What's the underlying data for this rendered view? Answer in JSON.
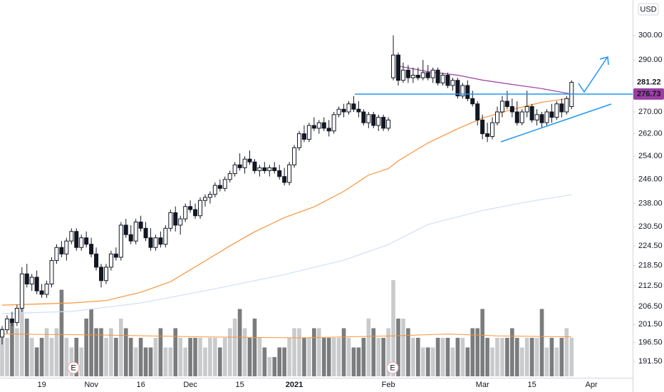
{
  "chart_data": {
    "type": "candlestick",
    "currency": "USD",
    "log_scale": true,
    "ylim": [
      187.2,
      315
    ],
    "yticks": [
      {
        "value": 191.5,
        "label": "191.50"
      },
      {
        "value": 196.5,
        "label": "196.50"
      },
      {
        "value": 201.5,
        "label": "201.50"
      },
      {
        "value": 206.5,
        "label": "206.50"
      },
      {
        "value": 212.5,
        "label": "212.50"
      },
      {
        "value": 218.5,
        "label": "218.50"
      },
      {
        "value": 224.5,
        "label": "224.50"
      },
      {
        "value": 230.5,
        "label": "230.50"
      },
      {
        "value": 238,
        "label": "238.00"
      },
      {
        "value": 246,
        "label": "246.00"
      },
      {
        "value": 254,
        "label": "254.00"
      },
      {
        "value": 262,
        "label": "262.00"
      },
      {
        "value": 270,
        "label": "270.00"
      },
      {
        "value": 290,
        "label": "290.00"
      },
      {
        "value": 300,
        "label": "300.00"
      }
    ],
    "categories": [
      null,
      null,
      null,
      null,
      null,
      null,
      null,
      null,
      "19",
      null,
      null,
      null,
      null,
      null,
      null,
      null,
      null,
      null,
      "Nov",
      null,
      null,
      null,
      null,
      null,
      null,
      null,
      null,
      null,
      "16",
      null,
      null,
      null,
      null,
      null,
      null,
      null,
      null,
      null,
      "Dec",
      null,
      null,
      null,
      null,
      null,
      null,
      null,
      null,
      null,
      "15",
      null,
      null,
      null,
      null,
      null,
      null,
      null,
      null,
      null,
      null,
      "2021",
      null,
      null,
      null,
      null,
      null,
      null,
      null,
      null,
      null,
      null,
      null,
      null,
      null,
      null,
      null,
      null,
      null,
      null,
      "Feb",
      null,
      null,
      null,
      null,
      null,
      null,
      null,
      null,
      null,
      null,
      null,
      null,
      null,
      null,
      null,
      null,
      null,
      null,
      "Mar",
      null,
      null,
      null,
      null,
      null,
      null,
      null,
      null,
      null,
      "15",
      null,
      null,
      null,
      null,
      null,
      null,
      null,
      null,
      null,
      null,
      null,
      "Apr",
      null,
      null,
      null,
      null,
      null,
      null,
      null,
      null
    ],
    "ohlc": [
      [
        198,
        201,
        196,
        200
      ],
      [
        200,
        204,
        199,
        203
      ],
      [
        203,
        205,
        201,
        202
      ],
      [
        202,
        207,
        201,
        206
      ],
      [
        206,
        218,
        205,
        216
      ],
      [
        216,
        219,
        212,
        213
      ],
      [
        213,
        216,
        211,
        215
      ],
      [
        215,
        217,
        210,
        211
      ],
      [
        211,
        213,
        209,
        210
      ],
      [
        210,
        214,
        209,
        213
      ],
      [
        213,
        221,
        212,
        220
      ],
      [
        220,
        225,
        219,
        224
      ],
      [
        224,
        226,
        221,
        222
      ],
      [
        222,
        227,
        220,
        226
      ],
      [
        226,
        230,
        225,
        229
      ],
      [
        229,
        230,
        223,
        224
      ],
      [
        224,
        228,
        223,
        227
      ],
      [
        227,
        229,
        224,
        225
      ],
      [
        225,
        227,
        221,
        222
      ],
      [
        222,
        224,
        217,
        218
      ],
      [
        218,
        219,
        212,
        214
      ],
      [
        214,
        219,
        213,
        218
      ],
      [
        218,
        223,
        217,
        222
      ],
      [
        222,
        224,
        220,
        221
      ],
      [
        221,
        232,
        220,
        231
      ],
      [
        231,
        233,
        227,
        228
      ],
      [
        228,
        231,
        225,
        226
      ],
      [
        226,
        233,
        225,
        232
      ],
      [
        232,
        234,
        229,
        230
      ],
      [
        230,
        232,
        226,
        227
      ],
      [
        227,
        230,
        223,
        224
      ],
      [
        224,
        228,
        223,
        227
      ],
      [
        227,
        229,
        224,
        225
      ],
      [
        225,
        231,
        224,
        230
      ],
      [
        230,
        236,
        229,
        235
      ],
      [
        235,
        237,
        229,
        231
      ],
      [
        231,
        234,
        228,
        233
      ],
      [
        233,
        238,
        232,
        237
      ],
      [
        237,
        239,
        235,
        236
      ],
      [
        236,
        238,
        233,
        234
      ],
      [
        234,
        240,
        233,
        239
      ],
      [
        239,
        241,
        237,
        240
      ],
      [
        240,
        242,
        238,
        241
      ],
      [
        241,
        245,
        240,
        244
      ],
      [
        244,
        246,
        242,
        243
      ],
      [
        243,
        247,
        242,
        246
      ],
      [
        246,
        249,
        245,
        248
      ],
      [
        248,
        252,
        247,
        251
      ],
      [
        251,
        255,
        249,
        250
      ],
      [
        250,
        254,
        248,
        253
      ],
      [
        253,
        256,
        251,
        252
      ],
      [
        252,
        253,
        248,
        249
      ],
      [
        249,
        251,
        247,
        250
      ],
      [
        250,
        252,
        248,
        249
      ],
      [
        249,
        251,
        247,
        250
      ],
      [
        250,
        252,
        248,
        249
      ],
      [
        249,
        251,
        246,
        247
      ],
      [
        247,
        250,
        244,
        245
      ],
      [
        245,
        252,
        244,
        251
      ],
      [
        251,
        258,
        250,
        257
      ],
      [
        257,
        263,
        256,
        262
      ],
      [
        262,
        265,
        259,
        260
      ],
      [
        260,
        266,
        259,
        265
      ],
      [
        265,
        268,
        263,
        264
      ],
      [
        264,
        267,
        262,
        266
      ],
      [
        266,
        268,
        263,
        264
      ],
      [
        264,
        267,
        261,
        263
      ],
      [
        263,
        270,
        262,
        269
      ],
      [
        269,
        272,
        268,
        271
      ],
      [
        271,
        273,
        268,
        270
      ],
      [
        270,
        274,
        269,
        273
      ],
      [
        273,
        276,
        270,
        271
      ],
      [
        271,
        274,
        268,
        270
      ],
      [
        270,
        271,
        265,
        266
      ],
      [
        266,
        270,
        264,
        269
      ],
      [
        269,
        270,
        264,
        265
      ],
      [
        265,
        269,
        263,
        268
      ],
      [
        268,
        269,
        263,
        264
      ],
      [
        264,
        268,
        263,
        267
      ],
      [
        283,
        300,
        282,
        292
      ],
      [
        292,
        293,
        280,
        282
      ],
      [
        282,
        289,
        281,
        286
      ],
      [
        286,
        288,
        281,
        283
      ],
      [
        283,
        287,
        281,
        284
      ],
      [
        284,
        287,
        282,
        283
      ],
      [
        283,
        290,
        282,
        285
      ],
      [
        285,
        288,
        282,
        283
      ],
      [
        283,
        287,
        281,
        286
      ],
      [
        286,
        287,
        280,
        281
      ],
      [
        281,
        285,
        280,
        284
      ],
      [
        284,
        285,
        279,
        280
      ],
      [
        280,
        283,
        278,
        282
      ],
      [
        282,
        283,
        275,
        276
      ],
      [
        276,
        281,
        275,
        280
      ],
      [
        280,
        282,
        274,
        275
      ],
      [
        275,
        278,
        272,
        273
      ],
      [
        273,
        274,
        265,
        267
      ],
      [
        267,
        269,
        260,
        262
      ],
      [
        262,
        266,
        259,
        261
      ],
      [
        261,
        268,
        260,
        266
      ],
      [
        266,
        272,
        265,
        270
      ],
      [
        270,
        276,
        268,
        274
      ],
      [
        274,
        278,
        271,
        272
      ],
      [
        272,
        275,
        268,
        270
      ],
      [
        270,
        274,
        265,
        266
      ],
      [
        266,
        271,
        265,
        270
      ],
      [
        270,
        278,
        268,
        272
      ],
      [
        272,
        273,
        266,
        267
      ],
      [
        267,
        271,
        265,
        269
      ],
      [
        269,
        270,
        264,
        266
      ],
      [
        266,
        271,
        265,
        270
      ],
      [
        270,
        273,
        266,
        268
      ],
      [
        268,
        274,
        267,
        273
      ],
      [
        273,
        275,
        268,
        270
      ],
      [
        270,
        276,
        269,
        275
      ],
      [
        272,
        282,
        271,
        281.22
      ],
      null,
      null,
      null,
      null,
      null,
      null,
      null,
      null,
      null,
      null,
      null,
      null
    ],
    "volume": [
      5,
      4,
      6,
      5,
      8,
      6,
      4,
      3,
      4,
      5,
      4,
      5,
      9,
      4,
      3,
      4,
      3,
      6,
      7,
      5,
      5,
      4,
      5,
      4,
      6,
      5,
      4,
      3,
      4,
      3,
      3,
      4,
      5,
      3,
      3,
      5,
      4,
      3,
      4,
      4,
      4,
      3,
      4,
      4,
      3,
      4,
      5,
      6,
      7,
      5,
      4,
      6,
      4,
      3,
      2,
      2,
      3,
      3,
      4,
      5,
      5,
      4,
      4,
      5,
      5,
      4,
      4,
      4,
      4,
      5,
      4,
      3,
      3,
      4,
      6,
      5,
      4,
      4,
      5,
      10,
      6,
      6,
      5,
      4,
      4,
      3,
      3,
      3,
      4,
      4,
      4,
      3,
      4,
      4,
      3,
      5,
      5,
      7,
      4,
      3,
      4,
      4,
      4,
      5,
      4,
      3,
      4,
      4,
      4,
      7,
      3,
      4,
      3,
      4,
      5,
      4,
      null,
      null,
      null,
      null,
      null,
      null,
      null,
      null,
      null,
      null,
      null,
      null
    ],
    "volume_colors": {
      "up": "#c9cacc",
      "down": "#7b7c7e"
    },
    "volume_average": {
      "color": "#f7953a",
      "x": [
        0,
        20,
        40,
        60,
        79,
        90,
        100,
        115
      ],
      "values": [
        4.4,
        4.3,
        4.1,
        4.0,
        4.2,
        4.4,
        4.2,
        4.1
      ]
    },
    "moving_averages": [
      {
        "color": "#f7953a",
        "x": [
          0,
          14,
          21,
          28,
          34,
          40,
          46,
          51,
          57,
          63,
          69,
          74,
          78,
          80,
          86,
          92,
          97,
          103,
          109,
          115
        ],
        "values": [
          206.9,
          207.5,
          208.2,
          210.6,
          213.7,
          219.0,
          224.5,
          228.9,
          233.4,
          236.9,
          242.0,
          247.5,
          249.7,
          252.4,
          258.7,
          263.8,
          267.7,
          270.9,
          273.6,
          275.2
        ]
      },
      {
        "color": "#9c3fa3",
        "x": [
          80,
          86,
          92,
          97,
          103,
          109,
          113,
          115
        ],
        "values": [
          287.6,
          285.4,
          284.0,
          282.1,
          280.4,
          278.8,
          277.4,
          276.73
        ]
      },
      {
        "color": "#cfe0f7",
        "x": [
          0,
          14,
          28,
          43,
          57,
          69,
          78,
          86,
          97,
          106,
          115
        ],
        "values": [
          204.5,
          205.1,
          207.5,
          211.6,
          215.8,
          220.1,
          224.9,
          231.2,
          235.7,
          238.5,
          240.9
        ]
      }
    ],
    "earnings_markers": [
      "E",
      "E"
    ]
  }
}
